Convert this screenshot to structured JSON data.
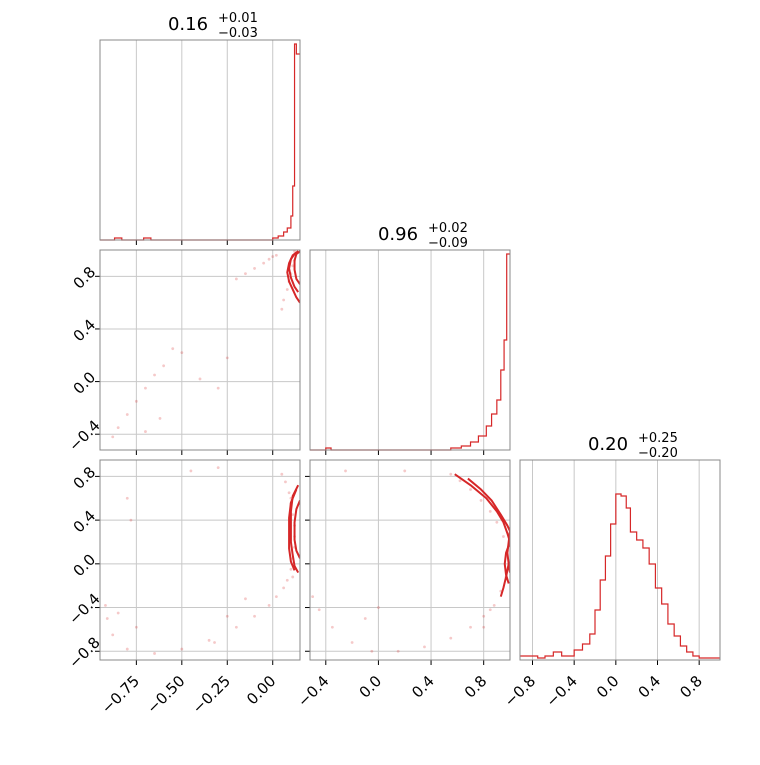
{
  "chart_data": [
    {
      "type": "histogram",
      "panel": "hist-1",
      "title_main": "0.16",
      "title_sup": "+0.01",
      "title_sub": "−0.03",
      "x_range": [
        -0.95,
        0.15
      ],
      "bins": [
        [
          -0.95,
          -0.87,
          0
        ],
        [
          -0.87,
          -0.83,
          0.01
        ],
        [
          -0.83,
          -0.78,
          0
        ],
        [
          -0.78,
          -0.71,
          0
        ],
        [
          -0.71,
          -0.67,
          0.01
        ],
        [
          -0.67,
          0.0,
          0
        ],
        [
          0.0,
          0.03,
          0.01
        ],
        [
          0.03,
          0.06,
          0.02
        ],
        [
          0.06,
          0.08,
          0.04
        ],
        [
          0.08,
          0.1,
          0.06
        ],
        [
          0.1,
          0.11,
          0.12
        ],
        [
          0.11,
          0.12,
          0.27
        ],
        [
          0.12,
          0.13,
          0.98
        ],
        [
          0.13,
          0.145,
          0.93
        ],
        [
          0.145,
          0.15,
          0.93
        ]
      ]
    },
    {
      "type": "histogram",
      "panel": "hist-2",
      "title_main": "0.96",
      "title_sup": "+0.02",
      "title_sub": "−0.09",
      "x_range": [
        -0.52,
        1.0
      ],
      "x_ticks": [
        "−0.4",
        "0.0",
        "0.4",
        "0.8"
      ],
      "bins": [
        [
          -0.52,
          -0.4,
          0
        ],
        [
          -0.4,
          -0.36,
          0.01
        ],
        [
          -0.36,
          0.55,
          0
        ],
        [
          0.55,
          0.63,
          0.01
        ],
        [
          0.63,
          0.7,
          0.02
        ],
        [
          0.7,
          0.76,
          0.04
        ],
        [
          0.76,
          0.82,
          0.07
        ],
        [
          0.82,
          0.86,
          0.12
        ],
        [
          0.86,
          0.9,
          0.18
        ],
        [
          0.9,
          0.93,
          0.25
        ],
        [
          0.93,
          0.955,
          0.4
        ],
        [
          0.955,
          0.975,
          0.55
        ],
        [
          0.975,
          1.0,
          0.98
        ]
      ]
    },
    {
      "type": "histogram",
      "panel": "hist-3",
      "title_main": "0.20",
      "title_sup": "+0.25",
      "title_sub": "−0.20",
      "x_range": [
        -0.92,
        1.0
      ],
      "x_ticks": [
        "−0.8",
        "−0.4",
        "0.0",
        "0.4",
        "0.8"
      ],
      "bins": [
        [
          -0.92,
          -0.75,
          0.02
        ],
        [
          -0.75,
          -0.68,
          0.01
        ],
        [
          -0.68,
          -0.6,
          0.02
        ],
        [
          -0.6,
          -0.52,
          0.04
        ],
        [
          -0.52,
          -0.4,
          0.02
        ],
        [
          -0.4,
          -0.32,
          0.05
        ],
        [
          -0.32,
          -0.25,
          0.08
        ],
        [
          -0.25,
          -0.2,
          0.13
        ],
        [
          -0.2,
          -0.15,
          0.25
        ],
        [
          -0.15,
          -0.1,
          0.4
        ],
        [
          -0.1,
          -0.05,
          0.52
        ],
        [
          -0.05,
          0.0,
          0.68
        ],
        [
          0.0,
          0.05,
          0.83
        ],
        [
          0.05,
          0.1,
          0.82
        ],
        [
          0.1,
          0.14,
          0.76
        ],
        [
          0.14,
          0.2,
          0.64
        ],
        [
          0.2,
          0.26,
          0.6
        ],
        [
          0.26,
          0.32,
          0.56
        ],
        [
          0.32,
          0.38,
          0.48
        ],
        [
          0.38,
          0.44,
          0.36
        ],
        [
          0.44,
          0.5,
          0.28
        ],
        [
          0.5,
          0.56,
          0.18
        ],
        [
          0.56,
          0.62,
          0.12
        ],
        [
          0.62,
          0.68,
          0.07
        ],
        [
          0.68,
          0.74,
          0.04
        ],
        [
          0.74,
          0.8,
          0.02
        ],
        [
          0.8,
          1.0,
          0.01
        ]
      ]
    },
    {
      "type": "scatter-contour",
      "panel": "scatter-21",
      "x_range": [
        -0.95,
        0.15
      ],
      "y_range": [
        -0.52,
        1.0
      ],
      "y_ticks": [
        "−0.4",
        "0.0",
        "0.4",
        "0.8"
      ],
      "points": [
        [
          -0.2,
          0.78
        ],
        [
          -0.15,
          0.82
        ],
        [
          -0.1,
          0.86
        ],
        [
          -0.05,
          0.9
        ],
        [
          -0.02,
          0.93
        ],
        [
          0.0,
          0.95
        ],
        [
          0.02,
          0.96
        ],
        [
          -0.55,
          0.25
        ],
        [
          -0.5,
          0.22
        ],
        [
          -0.6,
          0.12
        ],
        [
          -0.65,
          0.05
        ],
        [
          -0.7,
          -0.05
        ],
        [
          -0.75,
          -0.15
        ],
        [
          -0.8,
          -0.25
        ],
        [
          -0.85,
          -0.35
        ],
        [
          -0.88,
          -0.42
        ],
        [
          -0.25,
          0.18
        ],
        [
          -0.4,
          0.02
        ],
        [
          -0.3,
          -0.05
        ],
        [
          -0.62,
          -0.28
        ],
        [
          -0.7,
          -0.38
        ],
        [
          0.05,
          0.55
        ],
        [
          0.06,
          0.62
        ],
        [
          0.08,
          0.7
        ],
        [
          0.09,
          0.76
        ],
        [
          0.1,
          0.82
        ],
        [
          0.11,
          0.88
        ],
        [
          0.12,
          0.92
        ],
        [
          0.13,
          0.97
        ],
        [
          0.14,
          0.98
        ],
        [
          0.12,
          0.99
        ]
      ],
      "contours": [
        [
          [
            0.14,
            0.99
          ],
          [
            0.12,
            0.97
          ],
          [
            0.1,
            0.93
          ],
          [
            0.09,
            0.86
          ],
          [
            0.1,
            0.79
          ],
          [
            0.12,
            0.72
          ],
          [
            0.14,
            0.68
          ]
        ],
        [
          [
            0.14,
            0.99
          ],
          [
            0.11,
            0.96
          ],
          [
            0.09,
            0.9
          ],
          [
            0.08,
            0.83
          ],
          [
            0.09,
            0.76
          ],
          [
            0.11,
            0.7
          ],
          [
            0.13,
            0.64
          ],
          [
            0.15,
            0.6
          ]
        ],
        [
          [
            0.15,
            0.99
          ],
          [
            0.13,
            0.97
          ],
          [
            0.12,
            0.92
          ],
          [
            0.12,
            0.85
          ],
          [
            0.13,
            0.78
          ],
          [
            0.15,
            0.74
          ]
        ]
      ]
    },
    {
      "type": "scatter-contour",
      "panel": "scatter-31",
      "x_range": [
        -0.95,
        0.15
      ],
      "y_range": [
        -0.88,
        0.95
      ],
      "x_ticks": [
        "−0.75",
        "−0.50",
        "−0.25",
        "0.00"
      ],
      "y_ticks": [
        "−0.8",
        "−0.4",
        "0.0",
        "0.4",
        "0.8"
      ],
      "points": [
        [
          0.05,
          0.82
        ],
        [
          0.07,
          0.75
        ],
        [
          0.09,
          0.65
        ],
        [
          0.1,
          0.55
        ],
        [
          0.11,
          0.45
        ],
        [
          0.12,
          0.35
        ],
        [
          0.12,
          0.25
        ],
        [
          0.12,
          0.15
        ],
        [
          0.11,
          0.05
        ],
        [
          0.1,
          -0.05
        ],
        [
          0.08,
          -0.15
        ],
        [
          0.06,
          -0.22
        ],
        [
          0.02,
          -0.3
        ],
        [
          -0.02,
          -0.38
        ],
        [
          -0.1,
          -0.48
        ],
        [
          -0.2,
          -0.58
        ],
        [
          -0.35,
          -0.7
        ],
        [
          -0.5,
          -0.78
        ],
        [
          -0.65,
          -0.82
        ],
        [
          -0.8,
          -0.78
        ],
        [
          -0.88,
          -0.65
        ],
        [
          -0.91,
          -0.5
        ],
        [
          -0.92,
          -0.38
        ],
        [
          -0.85,
          -0.45
        ],
        [
          -0.75,
          -0.58
        ],
        [
          -0.45,
          0.85
        ],
        [
          -0.3,
          0.88
        ],
        [
          -0.8,
          0.6
        ],
        [
          -0.78,
          0.4
        ],
        [
          -0.25,
          -0.48
        ],
        [
          -0.15,
          -0.32
        ],
        [
          -0.32,
          -0.72
        ],
        [
          0.1,
          0.6
        ],
        [
          0.11,
          -0.12
        ]
      ],
      "contours": [
        [
          [
            0.14,
            0.72
          ],
          [
            0.11,
            0.62
          ],
          [
            0.1,
            0.48
          ],
          [
            0.1,
            0.35
          ],
          [
            0.1,
            0.2
          ],
          [
            0.11,
            0.08
          ],
          [
            0.12,
            -0.02
          ],
          [
            0.14,
            -0.08
          ]
        ],
        [
          [
            0.15,
            0.58
          ],
          [
            0.13,
            0.5
          ],
          [
            0.12,
            0.38
          ],
          [
            0.12,
            0.22
          ],
          [
            0.13,
            0.12
          ],
          [
            0.15,
            0.05
          ]
        ],
        [
          [
            0.13,
            0.68
          ],
          [
            0.1,
            0.56
          ],
          [
            0.09,
            0.42
          ],
          [
            0.09,
            0.28
          ],
          [
            0.09,
            0.14
          ],
          [
            0.1,
            0.02
          ],
          [
            0.12,
            -0.06
          ]
        ]
      ]
    },
    {
      "type": "scatter-contour",
      "panel": "scatter-32",
      "x_range": [
        -0.52,
        1.0
      ],
      "y_range": [
        -0.88,
        0.95
      ],
      "x_ticks": [
        "−0.4",
        "0.0",
        "0.4",
        "0.8"
      ],
      "points": [
        [
          0.55,
          0.82
        ],
        [
          0.62,
          0.76
        ],
        [
          0.7,
          0.68
        ],
        [
          0.78,
          0.58
        ],
        [
          0.85,
          0.48
        ],
        [
          0.9,
          0.38
        ],
        [
          0.95,
          0.25
        ],
        [
          0.98,
          0.12
        ],
        [
          0.99,
          0.0
        ],
        [
          0.97,
          -0.12
        ],
        [
          0.93,
          -0.25
        ],
        [
          0.88,
          -0.38
        ],
        [
          0.8,
          -0.48
        ],
        [
          0.7,
          -0.58
        ],
        [
          0.55,
          -0.68
        ],
        [
          0.35,
          -0.76
        ],
        [
          0.15,
          -0.8
        ],
        [
          -0.05,
          -0.8
        ],
        [
          -0.2,
          -0.72
        ],
        [
          -0.35,
          -0.58
        ],
        [
          -0.45,
          -0.42
        ],
        [
          -0.5,
          -0.3
        ],
        [
          0.85,
          -0.42
        ],
        [
          0.8,
          -0.58
        ],
        [
          -0.25,
          0.85
        ],
        [
          0.2,
          0.85
        ],
        [
          0.0,
          -0.4
        ],
        [
          -0.1,
          -0.5
        ]
      ],
      "contours": [
        [
          [
            0.58,
            0.82
          ],
          [
            0.7,
            0.72
          ],
          [
            0.82,
            0.6
          ],
          [
            0.9,
            0.48
          ],
          [
            0.95,
            0.38
          ],
          [
            0.98,
            0.28
          ],
          [
            1.0,
            0.2
          ]
        ],
        [
          [
            0.68,
            0.78
          ],
          [
            0.78,
            0.68
          ],
          [
            0.86,
            0.58
          ],
          [
            0.93,
            0.45
          ],
          [
            0.98,
            0.35
          ],
          [
            1.0,
            0.3
          ]
        ],
        [
          [
            1.0,
            0.3
          ],
          [
            0.99,
            0.2
          ],
          [
            0.98,
            0.1
          ],
          [
            0.99,
            0.0
          ],
          [
            1.0,
            -0.08
          ]
        ],
        [
          [
            1.0,
            0.2
          ],
          [
            0.97,
            0.1
          ],
          [
            0.96,
            0.0
          ],
          [
            0.97,
            -0.1
          ],
          [
            0.99,
            -0.18
          ]
        ],
        [
          [
            0.99,
            0.0
          ],
          [
            0.97,
            -0.12
          ],
          [
            0.95,
            -0.22
          ],
          [
            0.93,
            -0.3
          ]
        ]
      ]
    }
  ],
  "colors": {
    "series": "#d62728",
    "grid": "#c8c8c8",
    "frame": "#888888"
  }
}
